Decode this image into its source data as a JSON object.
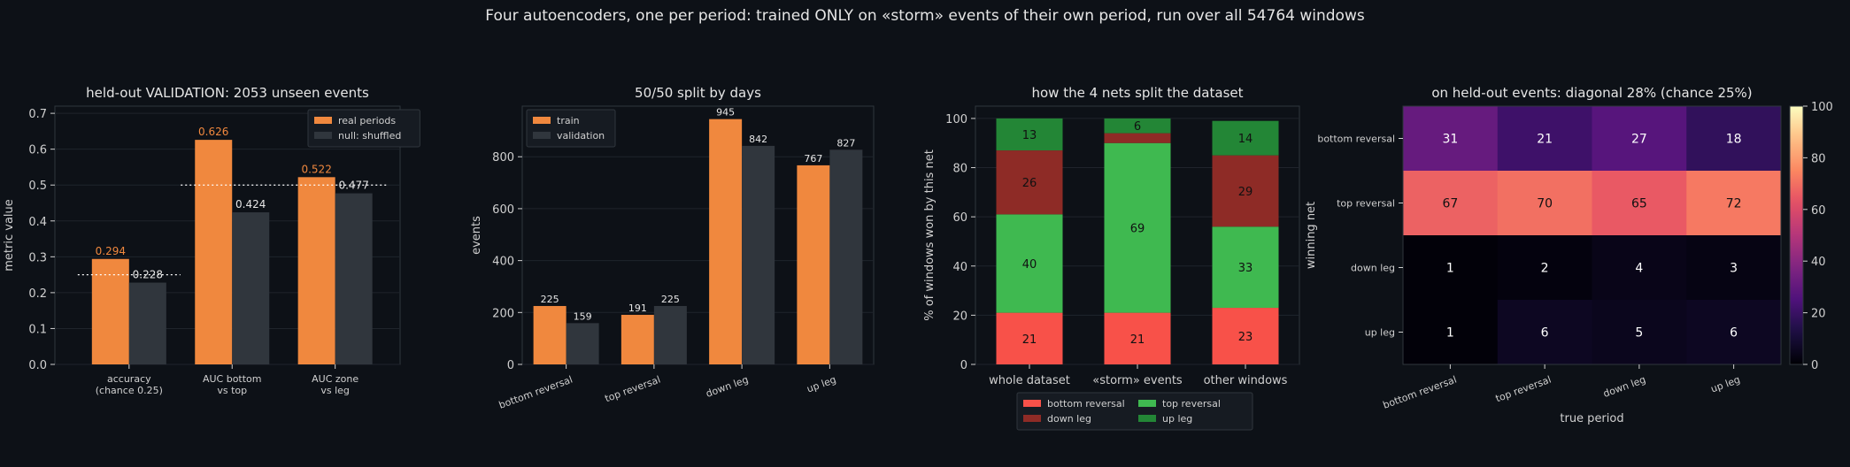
{
  "suptitle": "Four autoencoders, one per period: trained ONLY on «storm» events of their own period, run over all 54764 windows",
  "colors": {
    "background": "#0d1117",
    "axes_bg": "#0d1117",
    "spine": "#30363d",
    "orange": "#f0883e",
    "gray_bar": "#30363d",
    "bottom_reversal": "#f85149",
    "top_reversal": "#3fb950",
    "down_leg": "#8e2b26",
    "up_leg": "#238636"
  },
  "chart_data": [
    {
      "type": "bar",
      "title": "held-out VALIDATION: 2053 unseen events",
      "ylabel": "metric value",
      "xlabel": "",
      "ylim": [
        0,
        0.72
      ],
      "yticks": [
        "0.0",
        "0.1",
        "0.2",
        "0.3",
        "0.4",
        "0.5",
        "0.6",
        "0.7"
      ],
      "categories": [
        [
          "accuracy",
          "(chance 0.25)"
        ],
        [
          "AUC bottom",
          "vs top"
        ],
        [
          "AUC zone",
          "vs leg"
        ]
      ],
      "series": [
        {
          "name": "real periods",
          "values": [
            0.294,
            0.626,
            0.522
          ],
          "labels": [
            "0.294",
            "0.626",
            "0.522"
          ]
        },
        {
          "name": "null: shuffled",
          "values": [
            0.228,
            0.424,
            0.477
          ],
          "labels": [
            "0.228",
            "0.424",
            "0.477"
          ]
        }
      ],
      "reference_lines": [
        {
          "value": 0.25,
          "from_category": 0,
          "to_category": 0
        },
        {
          "value": 0.5,
          "from_category": 1,
          "to_category": 2
        }
      ],
      "legend": "top-right",
      "grid": true
    },
    {
      "type": "bar",
      "title": "50/50 split by days",
      "ylabel": "events",
      "xlabel": "",
      "ylim": [
        0,
        995
      ],
      "yticks": [
        "0",
        "200",
        "400",
        "600",
        "800"
      ],
      "categories": [
        "bottom reversal",
        "top reversal",
        "down leg",
        "up leg"
      ],
      "series": [
        {
          "name": "train",
          "values": [
            225,
            191,
            945,
            767
          ],
          "labels": [
            "225",
            "191",
            "945",
            "767"
          ]
        },
        {
          "name": "validation",
          "values": [
            159,
            225,
            842,
            827
          ],
          "labels": [
            "159",
            "225",
            "842",
            "827"
          ]
        }
      ],
      "legend": "top-left",
      "grid": true
    },
    {
      "type": "bar",
      "stacked": true,
      "title": "how the 4 nets split the dataset",
      "ylabel": "% of windows won by this net",
      "xlabel": "",
      "ylim": [
        0,
        105
      ],
      "yticks": [
        "0",
        "20",
        "40",
        "60",
        "80",
        "100"
      ],
      "categories": [
        "whole dataset",
        "«storm» events",
        "other windows"
      ],
      "series": [
        {
          "name": "bottom reversal",
          "values": [
            21,
            21,
            23
          ],
          "labels": [
            "21",
            "21",
            "23"
          ]
        },
        {
          "name": "top reversal",
          "values": [
            40,
            69,
            33
          ],
          "labels": [
            "40",
            "69",
            "33"
          ]
        },
        {
          "name": "down leg",
          "values": [
            26,
            4,
            29
          ],
          "labels": [
            "26",
            "",
            "29"
          ]
        },
        {
          "name": "up leg",
          "values": [
            13,
            6,
            14
          ],
          "labels": [
            "13",
            "6",
            "14"
          ]
        }
      ],
      "legend": "bottom-center",
      "grid": true
    },
    {
      "type": "heatmap",
      "title": "on held-out events: diagonal 28% (chance 25%)",
      "xlabel": "true period",
      "ylabel": "winning net",
      "x_categories": [
        "bottom reversal",
        "top reversal",
        "down leg",
        "up leg"
      ],
      "y_categories": [
        "bottom reversal",
        "top reversal",
        "down leg",
        "up leg"
      ],
      "values": [
        [
          31,
          21,
          27,
          18
        ],
        [
          67,
          70,
          65,
          72
        ],
        [
          1,
          2,
          4,
          3
        ],
        [
          1,
          6,
          5,
          6
        ]
      ],
      "colorbar": {
        "min": 0,
        "max": 100,
        "ticks": [
          "0",
          "20",
          "40",
          "60",
          "80",
          "100"
        ],
        "colormap": "magma"
      }
    }
  ]
}
